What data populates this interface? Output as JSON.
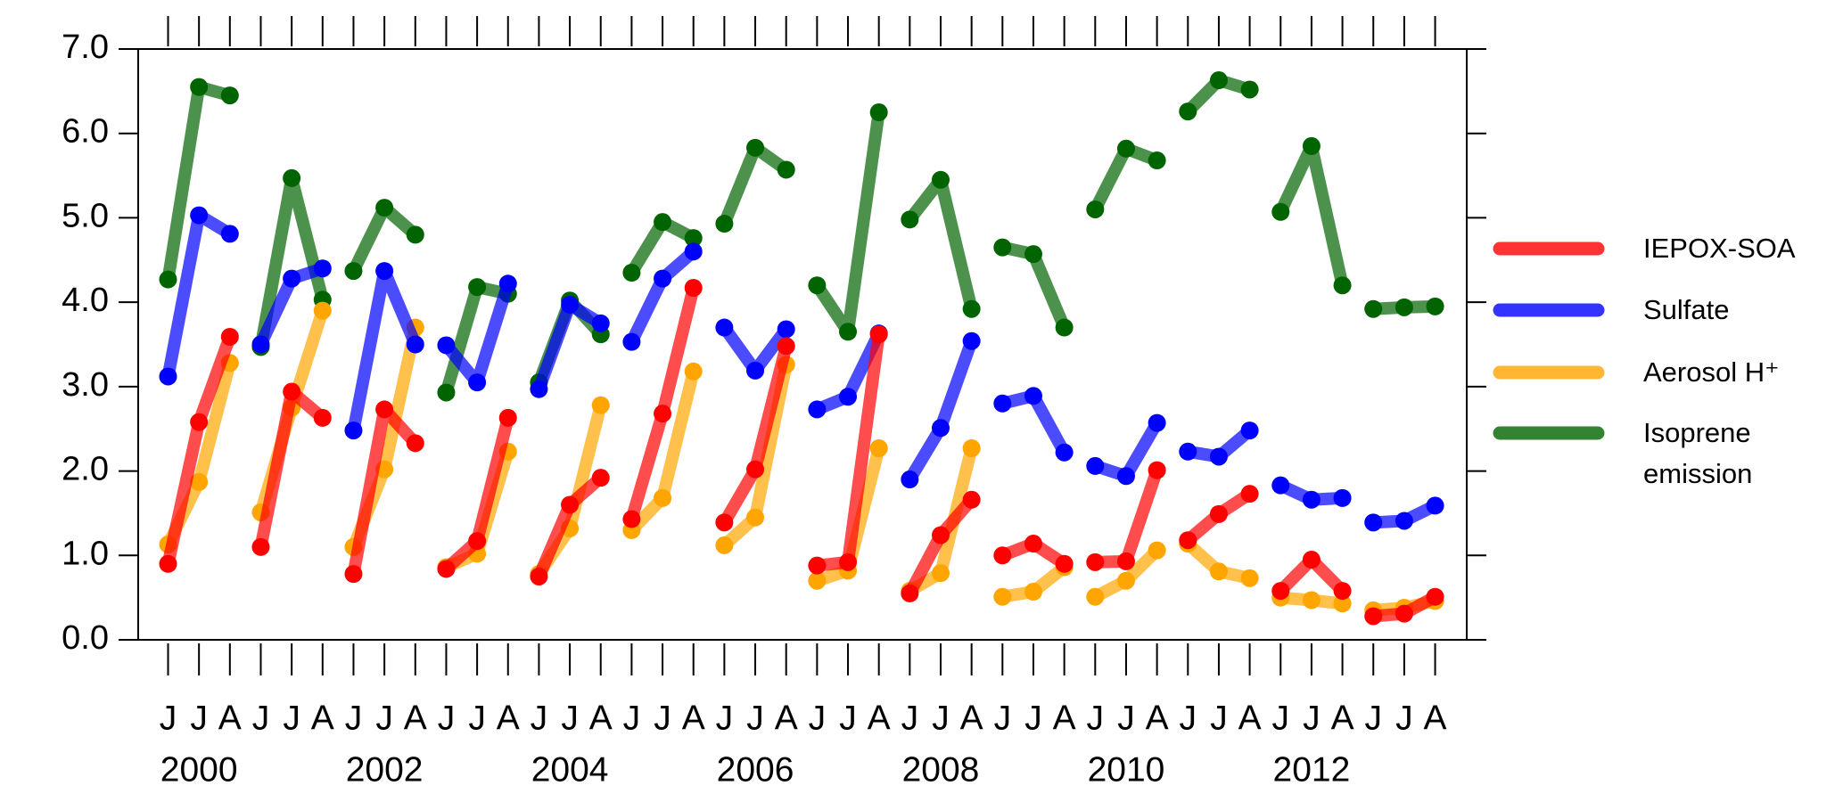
{
  "chart_data": {
    "type": "line",
    "categories": [
      "J",
      "J",
      "A",
      "J",
      "J",
      "A",
      "J",
      "J",
      "A",
      "J",
      "J",
      "A",
      "J",
      "J",
      "A",
      "J",
      "J",
      "A",
      "J",
      "J",
      "A",
      "J",
      "J",
      "A",
      "J",
      "J",
      "A",
      "J",
      "J",
      "A",
      "J",
      "J",
      "A",
      "J",
      "J",
      "A",
      "J",
      "J",
      "A",
      "J",
      "J",
      "A"
    ],
    "year_labels": [
      "2000",
      null,
      "2002",
      null,
      "2004",
      null,
      "2006",
      null,
      "2008",
      null,
      "2010",
      null,
      "2012",
      null
    ],
    "series": [
      {
        "name": "IEPOX-SOA",
        "color": "#ff0000",
        "values": [
          0.9,
          2.58,
          3.59,
          1.1,
          2.94,
          2.63,
          0.78,
          2.73,
          2.33,
          0.84,
          1.17,
          2.63,
          0.75,
          1.6,
          1.92,
          1.43,
          2.68,
          4.17,
          1.39,
          2.02,
          3.48,
          0.88,
          0.92,
          3.62,
          0.55,
          1.24,
          1.66,
          1.0,
          1.14,
          0.9,
          0.92,
          0.93,
          2.01,
          1.18,
          1.49,
          1.73,
          0.58,
          0.95,
          0.58,
          0.28,
          0.31,
          0.51
        ]
      },
      {
        "name": "Sulfate",
        "color": "#0000ff",
        "values": [
          3.12,
          5.03,
          4.81,
          3.5,
          4.28,
          4.4,
          2.48,
          4.37,
          3.5,
          3.49,
          3.05,
          4.22,
          2.97,
          3.97,
          3.75,
          3.53,
          4.28,
          4.6,
          3.7,
          3.19,
          3.68,
          2.73,
          2.88,
          3.63,
          1.9,
          2.51,
          3.54,
          2.8,
          2.89,
          2.22,
          2.06,
          1.94,
          2.57,
          2.23,
          2.17,
          2.48,
          1.83,
          1.66,
          1.68,
          1.39,
          1.41,
          1.59
        ]
      },
      {
        "name": "Aerosol H⁺",
        "color": "#ffa500",
        "values": [
          1.13,
          1.87,
          3.28,
          1.51,
          2.75,
          3.9,
          1.1,
          2.02,
          3.7,
          0.86,
          1.02,
          2.23,
          0.78,
          1.32,
          2.78,
          1.3,
          1.68,
          3.18,
          1.12,
          1.45,
          3.26,
          0.7,
          0.82,
          2.27,
          0.58,
          0.79,
          2.27,
          0.51,
          0.57,
          0.86,
          0.51,
          0.7,
          1.06,
          1.14,
          0.81,
          0.73,
          0.5,
          0.47,
          0.43,
          0.35,
          0.38,
          0.46
        ]
      },
      {
        "name": "Isoprene emission",
        "color": "#006400",
        "values": [
          4.27,
          6.55,
          6.45,
          3.47,
          5.47,
          4.03,
          4.37,
          5.12,
          4.8,
          2.93,
          4.18,
          4.1,
          3.05,
          4.02,
          3.62,
          4.35,
          4.95,
          4.76,
          4.93,
          5.83,
          5.57,
          4.2,
          3.65,
          6.25,
          4.98,
          5.45,
          3.92,
          4.65,
          4.57,
          3.7,
          5.1,
          5.82,
          5.68,
          6.26,
          6.63,
          6.52,
          5.07,
          5.85,
          4.2,
          3.92,
          3.94,
          3.95
        ]
      }
    ],
    "ylim": [
      0,
      7
    ],
    "yticks": [
      {
        "value": 0,
        "label": "0.0"
      },
      {
        "value": 1,
        "label": "1.0"
      },
      {
        "value": 2,
        "label": "2.0"
      },
      {
        "value": 3,
        "label": "3.0"
      },
      {
        "value": 4,
        "label": "4.0"
      },
      {
        "value": 5,
        "label": "5.0"
      },
      {
        "value": 6,
        "label": "6.0"
      },
      {
        "value": 7,
        "label": "7.0"
      }
    ],
    "legend": "right"
  }
}
